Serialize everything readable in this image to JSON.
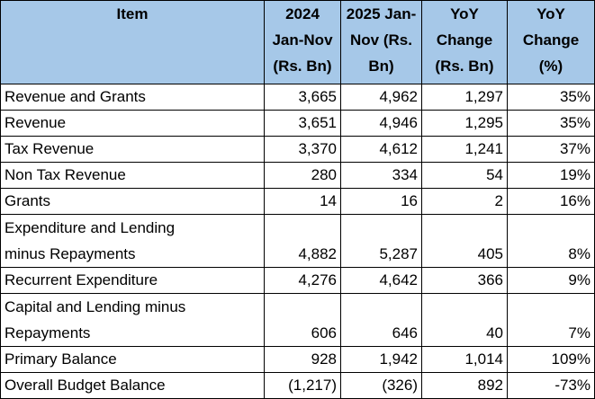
{
  "colors": {
    "header_bg": "#a6c8e8",
    "border": "#000000",
    "text": "#000000"
  },
  "headers": [
    "Item",
    "2024\nJan-Nov\n(Rs. Bn)",
    "2025 Jan-\nNov (Rs.\nBn)",
    "YoY\nChange\n(Rs. Bn)",
    "YoY\nChange\n(%)"
  ],
  "rows": [
    {
      "item": "Revenue and Grants",
      "y2024": "3,665",
      "y2025": "4,962",
      "change": "1,297",
      "pct": "35%"
    },
    {
      "item": "Revenue",
      "y2024": "3,651",
      "y2025": "4,946",
      "change": "1,295",
      "pct": "35%"
    },
    {
      "item": "Tax Revenue",
      "y2024": "3,370",
      "y2025": "4,612",
      "change": "1,241",
      "pct": "37%"
    },
    {
      "item": "Non Tax Revenue",
      "y2024": "280",
      "y2025": "334",
      "change": "54",
      "pct": "19%"
    },
    {
      "item": "Grants",
      "y2024": "14",
      "y2025": "16",
      "change": "2",
      "pct": "16%"
    },
    {
      "item": "Expenditure and Lending\nminus Repayments",
      "y2024": "4,882",
      "y2025": "5,287",
      "change": "405",
      "pct": "8%",
      "tall": true
    },
    {
      "item": "Recurrent Expenditure",
      "y2024": "4,276",
      "y2025": "4,642",
      "change": "366",
      "pct": "9%"
    },
    {
      "item": "Capital and Lending minus\nRepayments",
      "y2024": "606",
      "y2025": "646",
      "change": "40",
      "pct": "7%",
      "tall": true
    },
    {
      "item": "Primary Balance",
      "y2024": "928",
      "y2025": "1,942",
      "change": "1,014",
      "pct": "109%"
    },
    {
      "item": "Overall Budget Balance",
      "y2024": "(1,217)",
      "y2025": "(326)",
      "change": "892",
      "pct": "-73%"
    }
  ]
}
